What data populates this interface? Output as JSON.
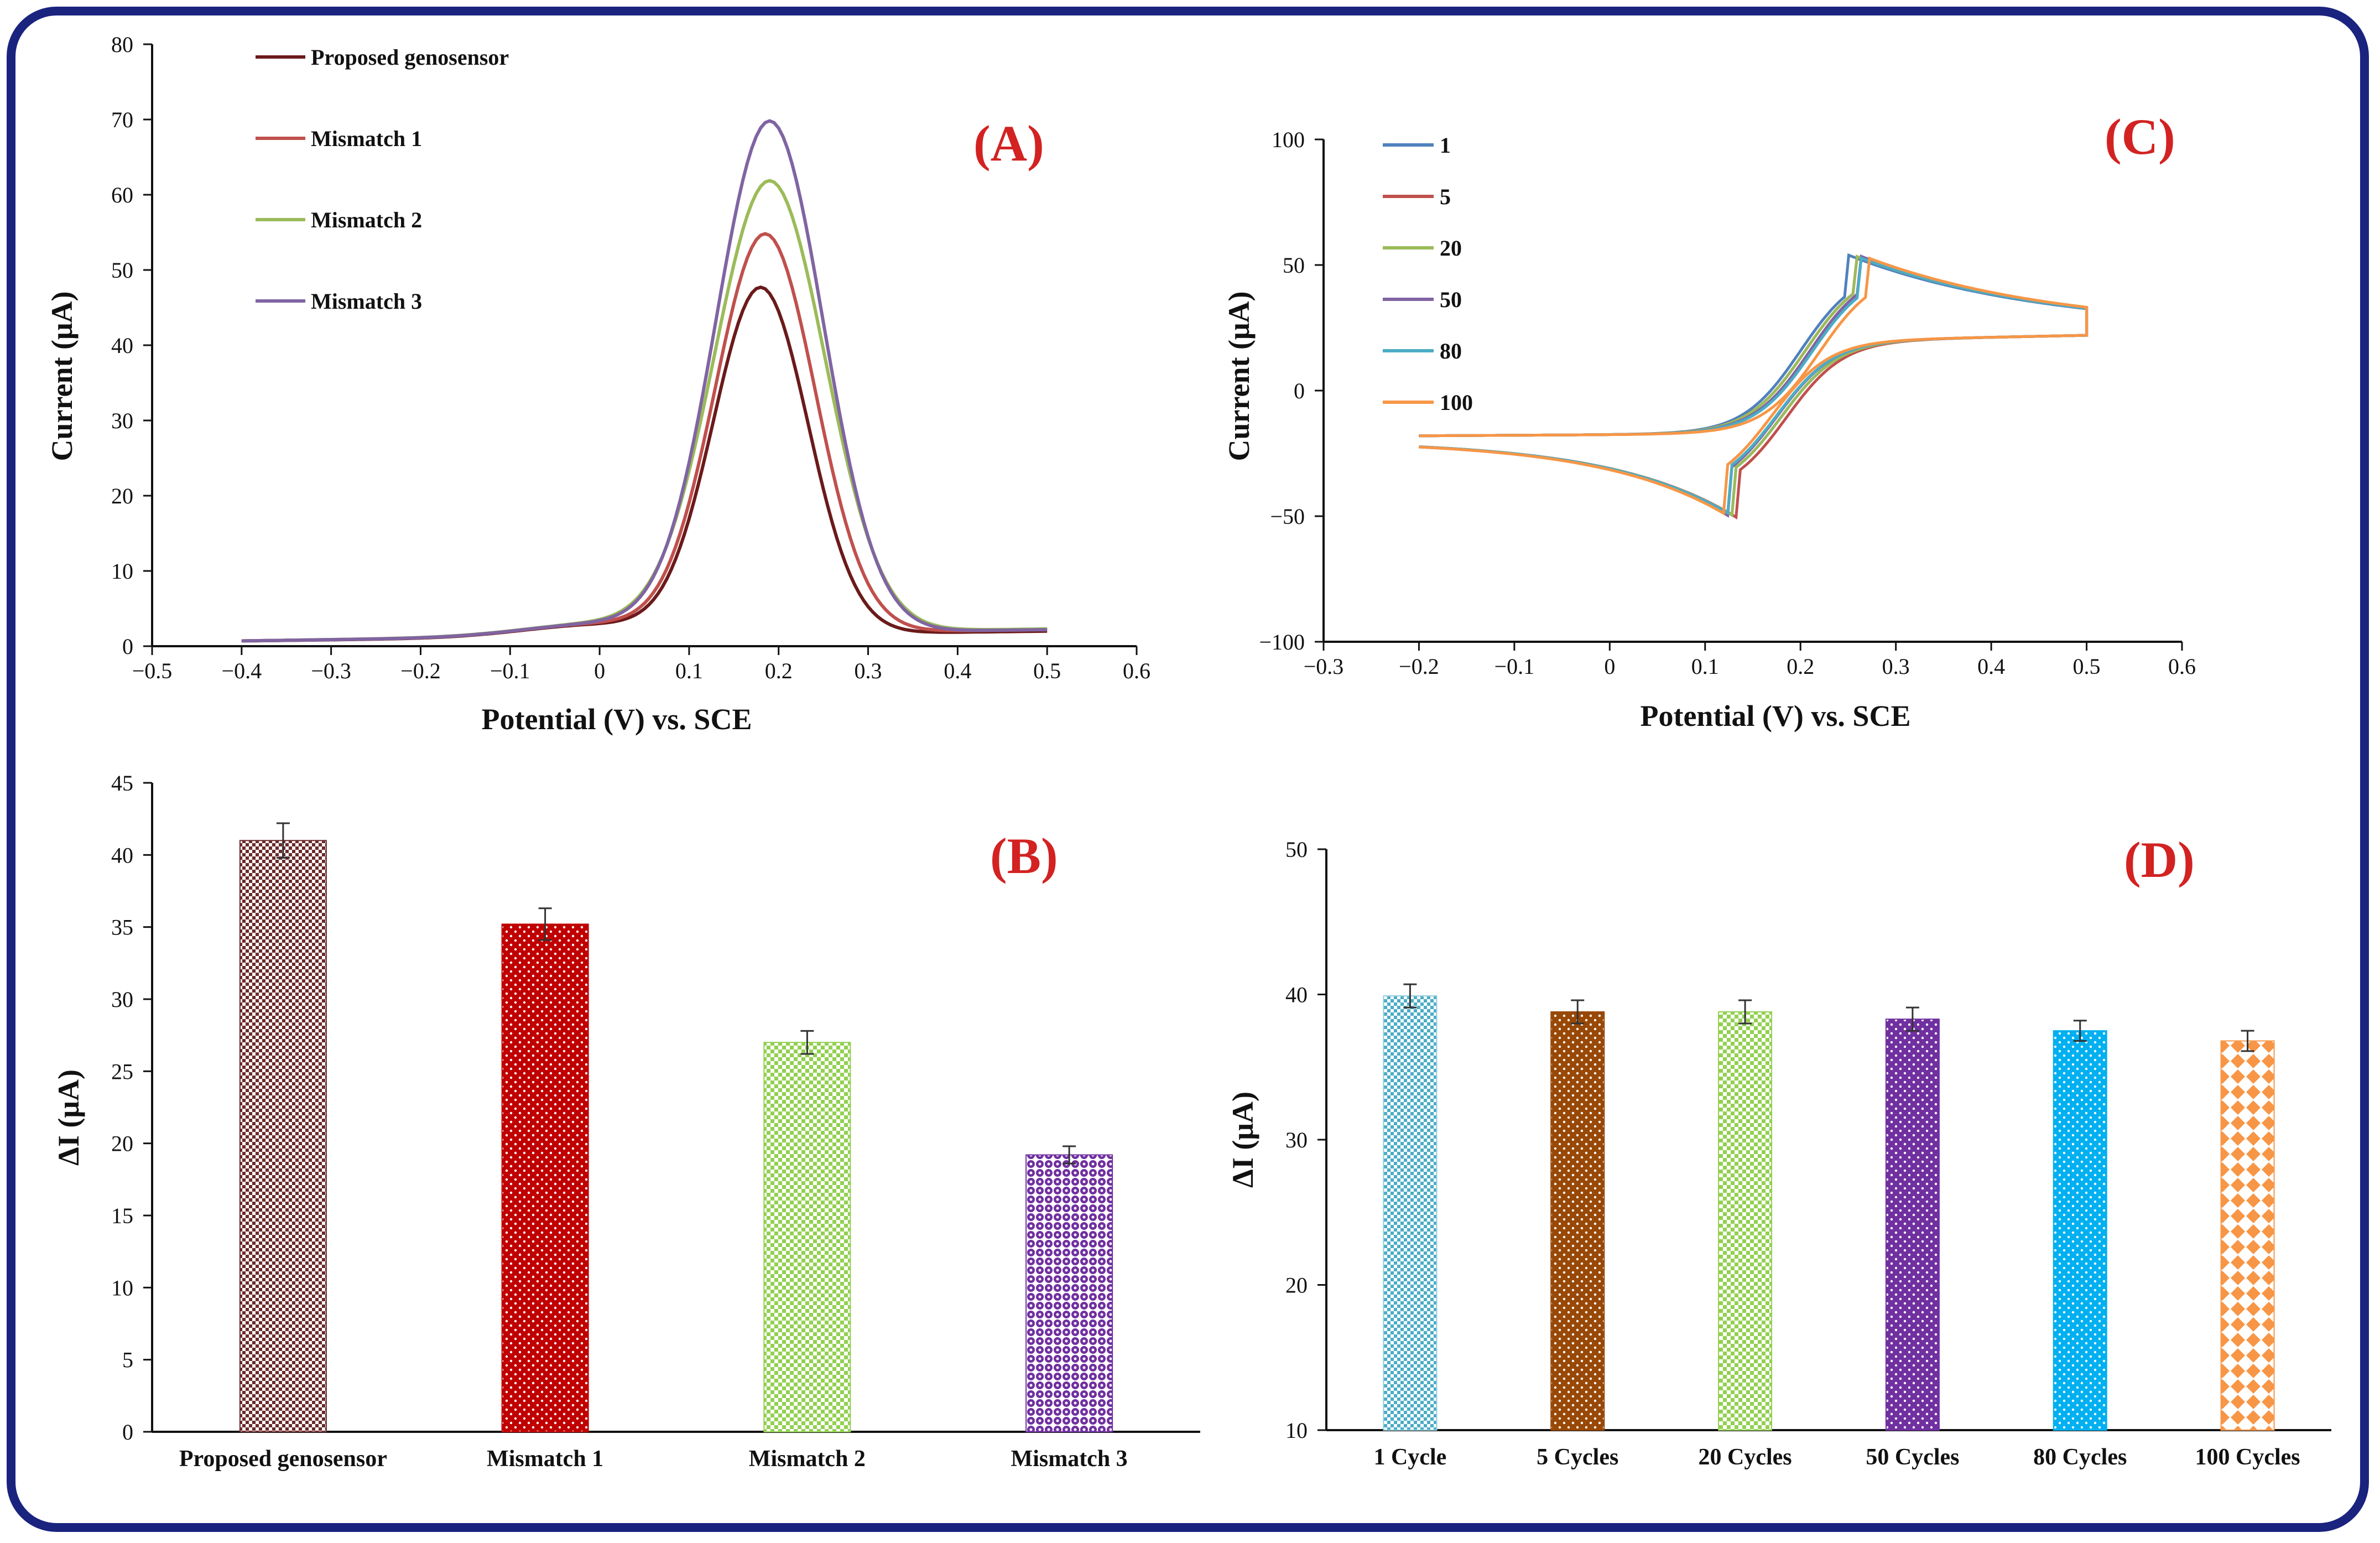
{
  "chart_data": [
    {
      "id": "A",
      "type": "line",
      "panel_label": "(A)",
      "xlabel": "Potential (V) vs. SCE",
      "ylabel": "Current  (μA)",
      "xlim": [
        -0.5,
        0.6
      ],
      "ylim": [
        0,
        80
      ],
      "xticks": [
        -0.5,
        -0.4,
        -0.3,
        -0.2,
        -0.1,
        0,
        0.1,
        0.2,
        0.3,
        0.4,
        0.5,
        0.6
      ],
      "yticks": [
        0,
        10,
        20,
        30,
        40,
        50,
        60,
        70,
        80
      ],
      "x_tick_labels": [
        "−0.5",
        "−0.4",
        "−0.3",
        "−0.2",
        "−0.1",
        "0",
        "0.1",
        "0.2",
        "0.3",
        "0.4",
        "0.5",
        "0.6"
      ],
      "legend": "top-left",
      "series": [
        {
          "name": "Proposed genosensor",
          "color": "#6b1a1a",
          "peak": 46.0,
          "peak_x": 0.18,
          "width": 0.053,
          "base_end": 2.0
        },
        {
          "name": "Mismatch 1",
          "color": "#c0504d",
          "peak": 53.0,
          "peak_x": 0.185,
          "width": 0.056,
          "base_end": 2.2
        },
        {
          "name": "Mismatch 2",
          "color": "#9bbb59",
          "peak": 60.0,
          "peak_x": 0.19,
          "width": 0.062,
          "base_end": 2.3
        },
        {
          "name": "Mismatch 3",
          "color": "#8064a2",
          "peak": 68.0,
          "peak_x": 0.19,
          "width": 0.06,
          "base_end": 2.2
        }
      ]
    },
    {
      "id": "B",
      "type": "bar",
      "panel_label": "(B)",
      "ylabel": "ΔI (μA)",
      "ylim": [
        0,
        45
      ],
      "yticks": [
        0,
        5,
        10,
        15,
        20,
        25,
        30,
        35,
        40,
        45
      ],
      "categories": [
        "Proposed genosensor",
        "Mismatch 1",
        "Mismatch 2",
        "Mismatch 3"
      ],
      "values": [
        41.0,
        35.2,
        27.0,
        19.2
      ],
      "errors": [
        1.2,
        1.1,
        0.8,
        0.6
      ],
      "colors": [
        "#6b2a2a",
        "#c00000",
        "#92d050",
        "#7030a0"
      ],
      "patterns": [
        "check",
        "dots",
        "check",
        "circles"
      ]
    },
    {
      "id": "C",
      "type": "line",
      "panel_label": "(C)",
      "xlabel": "Potential (V) vs. SCE",
      "ylabel": "Current  (μA)",
      "xlim": [
        -0.3,
        0.6
      ],
      "ylim": [
        -100,
        100
      ],
      "xticks": [
        -0.3,
        -0.2,
        -0.1,
        0,
        0.1,
        0.2,
        0.3,
        0.4,
        0.5,
        0.6
      ],
      "yticks": [
        -100,
        -50,
        0,
        50,
        100
      ],
      "x_tick_labels": [
        "−0.3",
        "−0.2",
        "−0.1",
        "0",
        "0.1",
        "0.2",
        "0.3",
        "0.4",
        "0.5",
        "0.6"
      ],
      "y_tick_labels": [
        "−100",
        "−50",
        "0",
        "50",
        "100"
      ],
      "legend": "top-left",
      "series": [
        {
          "name": "1",
          "color": "#4f81bd",
          "anodic_peak": 54,
          "anodic_x": 0.25,
          "cathodic_peak": -50,
          "cathodic_x": 0.13
        },
        {
          "name": "5",
          "color": "#c0504d",
          "anodic_peak": 54,
          "anodic_x": 0.255,
          "cathodic_peak": -51,
          "cathodic_x": 0.135
        },
        {
          "name": "20",
          "color": "#9bbb59",
          "anodic_peak": 54,
          "anodic_x": 0.255,
          "cathodic_peak": -50,
          "cathodic_x": 0.13
        },
        {
          "name": "50",
          "color": "#8064a2",
          "anodic_peak": 54,
          "anodic_x": 0.26,
          "cathodic_peak": -50,
          "cathodic_x": 0.125
        },
        {
          "name": "80",
          "color": "#4bacc6",
          "anodic_peak": 53,
          "anodic_x": 0.262,
          "cathodic_peak": -49,
          "cathodic_x": 0.125
        },
        {
          "name": "100",
          "color": "#f79646",
          "anodic_peak": 53,
          "anodic_x": 0.27,
          "cathodic_peak": -49,
          "cathodic_x": 0.12
        }
      ]
    },
    {
      "id": "D",
      "type": "bar",
      "panel_label": "(D)",
      "ylabel": "ΔI (μA)",
      "ylim": [
        10,
        50
      ],
      "yticks": [
        10,
        20,
        30,
        40,
        50
      ],
      "categories": [
        "1 Cycle",
        "5 Cycles",
        "20 Cycles",
        "50 Cycles",
        "80 Cycles",
        "100 Cycles"
      ],
      "values": [
        39.9,
        38.8,
        38.8,
        38.3,
        37.5,
        36.8
      ],
      "errors": [
        0.8,
        0.8,
        0.8,
        0.8,
        0.7,
        0.7
      ],
      "colors": [
        "#92cddc",
        "#984807",
        "#92d050",
        "#7030a0",
        "#00b0f0",
        "#f79646"
      ],
      "patterns": [
        "check",
        "dots",
        "check",
        "dots",
        "dots",
        "diamonds"
      ]
    }
  ]
}
